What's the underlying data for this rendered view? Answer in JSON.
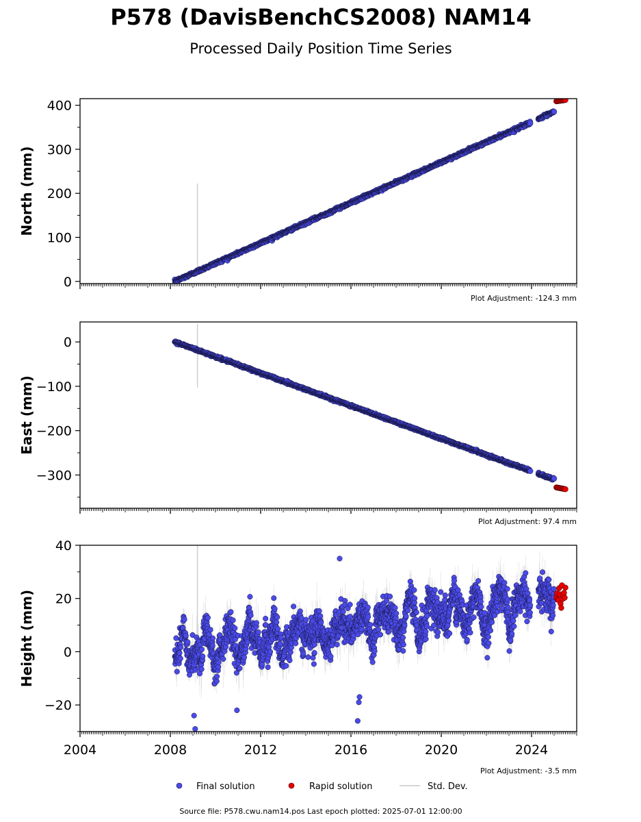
{
  "title": "P578 (DavisBenchCS2008) NAM14",
  "subtitle": "Processed Daily Position Time Series",
  "legend": {
    "final": "Final solution",
    "rapid": "Rapid solution",
    "std": "Std. Dev."
  },
  "footer": "Source file: P578.cwu.nam14.pos  Last epoch plotted: 2025-07-01 12:00:00",
  "colors": {
    "final_fill": "#4a4ae8",
    "final_edge": "#14143c",
    "rapid_fill": "#e60000",
    "rapid_edge": "#400000",
    "std_line": "#9a9a9a"
  },
  "chart_data": [
    {
      "type": "scatter",
      "ylabel": "North (mm)",
      "adjustment": "Plot Adjustment: -124.3 mm",
      "xlim": [
        2004,
        2026
      ],
      "ylim": [
        -5,
        415
      ],
      "yticks": [
        0,
        100,
        200,
        300,
        400
      ],
      "xticks": [],
      "final_trend": {
        "x": [
          2008.2,
          2025.0
        ],
        "y": [
          0,
          385
        ]
      },
      "final_gap": [
        2023.95,
        2024.3
      ],
      "rapid": {
        "x": [
          2025.1,
          2025.5
        ],
        "y": [
          409,
          412
        ]
      },
      "std_spike": {
        "x": 2009.2,
        "y": [
          27,
          222
        ]
      },
      "noise_mm": 1.5
    },
    {
      "type": "scatter",
      "ylabel": "East (mm)",
      "adjustment": "Plot Adjustment: 97.4 mm",
      "xlim": [
        2004,
        2026
      ],
      "ylim": [
        -375,
        45
      ],
      "yticks": [
        0,
        -100,
        -200,
        -300
      ],
      "ytick_labels": [
        "0",
        "−100",
        "−200",
        "−300"
      ],
      "xticks": [],
      "final_trend": {
        "x": [
          2008.2,
          2025.0
        ],
        "y": [
          0,
          -310
        ]
      },
      "final_gap": [
        2023.95,
        2024.3
      ],
      "rapid": {
        "x": [
          2025.1,
          2025.5
        ],
        "y": [
          -328,
          -332
        ]
      },
      "std_spike": {
        "x": 2009.2,
        "y": [
          -103,
          40
        ]
      },
      "noise_mm": 1.2
    },
    {
      "type": "scatter",
      "ylabel": "Height (mm)",
      "adjustment": "Plot Adjustment: -3.5 mm",
      "xlim": [
        2004,
        2026
      ],
      "ylim": [
        -30,
        40
      ],
      "yticks": [
        -20,
        0,
        20,
        40
      ],
      "ytick_labels": [
        "−20",
        "0",
        "20",
        "40"
      ],
      "xticks": [
        2004,
        2008,
        2012,
        2016,
        2020,
        2024
      ],
      "xtick_labels": [
        "2004",
        "2008",
        "2012",
        "2016",
        "2020",
        "2024"
      ],
      "final_trend": {
        "x": [
          2008.2,
          2025.0
        ],
        "y": [
          0,
          20
        ]
      },
      "final_gap": [
        2023.95,
        2024.3
      ],
      "rapid": {
        "x": [
          2025.1,
          2025.5
        ],
        "y": [
          15,
          25
        ]
      },
      "std_spike": {
        "x": 2009.2,
        "y": [
          -10,
          40
        ]
      },
      "outliers": [
        {
          "x": 2009.05,
          "y": -24
        },
        {
          "x": 2009.1,
          "y": -29
        },
        {
          "x": 2010.95,
          "y": -22
        },
        {
          "x": 2016.3,
          "y": -26
        },
        {
          "x": 2016.35,
          "y": -19
        },
        {
          "x": 2016.38,
          "y": -17
        },
        {
          "x": 2015.5,
          "y": 35
        }
      ],
      "noise_mm": 4.5,
      "seasonal_amp_mm": 5
    }
  ]
}
